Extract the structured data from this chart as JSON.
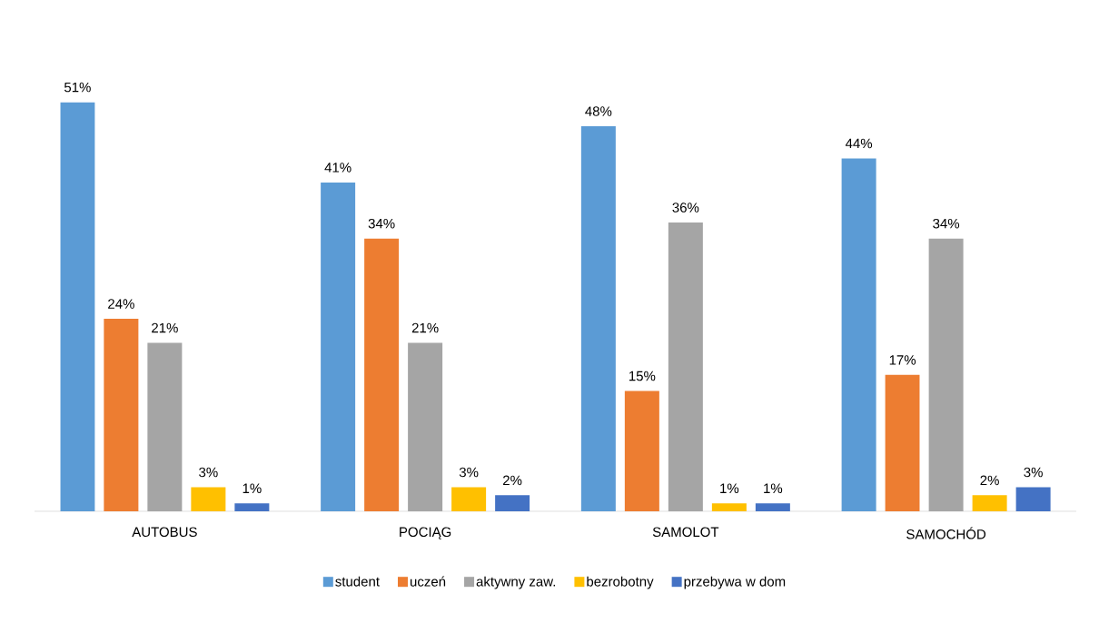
{
  "chart_data": {
    "type": "bar",
    "categories": [
      "AUTOBUS",
      "POCIĄG",
      "SAMOLOT",
      "SAMOCHÓD"
    ],
    "series": [
      {
        "name": "student",
        "color": "#5b9bd5",
        "values": [
          51,
          41,
          48,
          44
        ],
        "value_labels": [
          "51%",
          "41%",
          "48%",
          "44%"
        ]
      },
      {
        "name": "uczeń",
        "color": "#ed7d31",
        "values": [
          24,
          34,
          15,
          17
        ],
        "value_labels": [
          "24%",
          "34%",
          "15%",
          "17%"
        ]
      },
      {
        "name": "aktywny zaw.",
        "color": "#a5a5a5",
        "values": [
          21,
          21,
          36,
          34
        ],
        "value_labels": [
          "21%",
          "21%",
          "36%",
          "34%"
        ]
      },
      {
        "name": "bezrobotny",
        "color": "#ffc000",
        "values": [
          3,
          3,
          1,
          2
        ],
        "value_labels": [
          "3%",
          "3%",
          "1%",
          "2%"
        ]
      },
      {
        "name": "przebywa w dom",
        "color": "#4472c4",
        "values": [
          1,
          2,
          1,
          3
        ],
        "value_labels": [
          "1%",
          "2%",
          "1%",
          "3%"
        ]
      }
    ],
    "legend": "bottom"
  }
}
